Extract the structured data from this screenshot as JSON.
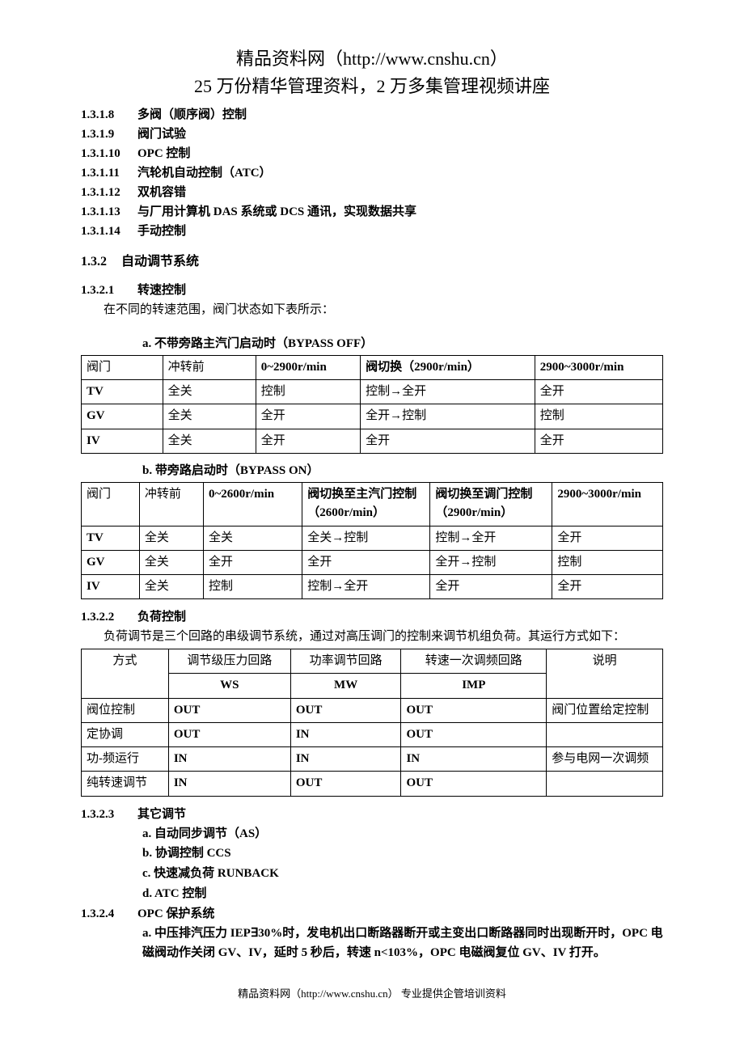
{
  "header": {
    "line1": "精品资料网（http://www.cnshu.cn）",
    "line2": "25 万份精华管理资料，2 万多集管理视频讲座"
  },
  "toc": [
    {
      "num": "1.3.1.8",
      "txt": "多阀（顺序阀）控制"
    },
    {
      "num": "1.3.1.9",
      "txt": "阀门试验"
    },
    {
      "num": "1.3.1.10",
      "txt": "OPC 控制"
    },
    {
      "num": "1.3.1.11",
      "txt": "汽轮机自动控制（ATC）"
    },
    {
      "num": "1.3.1.12",
      "txt": "双机容错"
    },
    {
      "num": "1.3.1.13",
      "txt": "与厂用计算机 DAS 系统或 DCS 通讯，实现数据共享"
    },
    {
      "num": "1.3.1.14",
      "txt": "手动控制"
    }
  ],
  "section_132": {
    "num": "1.3.2",
    "title": "自动调节系统"
  },
  "s1321": {
    "num": "1.3.2.1",
    "title": "转速控制",
    "body": "在不同的转速范围，阀门状态如下表所示："
  },
  "tableA": {
    "title": "a.   不带旁路主汽门启动时（BYPASS OFF）",
    "widths": [
      "14%",
      "16%",
      "18%",
      "30%",
      "22%"
    ],
    "head": [
      "阀门",
      "冲转前",
      "0~2900r/min",
      "阀切换（2900r/min）",
      "2900~3000r/min"
    ],
    "rows": [
      [
        "TV",
        "全关",
        "控制",
        "控制→全开",
        "全开"
      ],
      [
        "GV",
        "全关",
        "全开",
        "全开→控制",
        "控制"
      ],
      [
        "IV",
        "全关",
        "全开",
        "全开",
        "全开"
      ]
    ],
    "bold_col0": true
  },
  "tableB": {
    "title": "b.   带旁路启动时（BYPASS ON）",
    "widths": [
      "10%",
      "11%",
      "17%",
      "22%",
      "21%",
      "19%"
    ],
    "head": [
      "阀门",
      "冲转前",
      "0~2600r/min",
      "阀切换至主汽门控制（2600r/min）",
      "阀切换至调门控制（2900r/min）",
      "2900~3000r/min"
    ],
    "rows": [
      [
        "TV",
        "全关",
        "全关",
        "全关→控制",
        "控制→全开",
        "全开"
      ],
      [
        "GV",
        "全关",
        "全开",
        "全开",
        "全开→控制",
        "控制"
      ],
      [
        "IV",
        "全关",
        "控制",
        "控制→全开",
        "全开",
        "全开"
      ]
    ],
    "bold_col0": true
  },
  "s1322": {
    "num": "1.3.2.2",
    "title": "负荷控制",
    "body": "负荷调节是三个回路的串级调节系统，通过对高压调门的控制来调节机组负荷。其运行方式如下："
  },
  "tableC": {
    "widths": [
      "15%",
      "21%",
      "19%",
      "25%",
      "20%"
    ],
    "head_top": [
      "方式",
      "调节级压力回路",
      "功率调节回路",
      "转速一次调频回路",
      "说明"
    ],
    "head_sub": [
      "",
      "WS",
      "MW",
      "IMP",
      ""
    ],
    "rows": [
      [
        "阀位控制",
        "OUT",
        "OUT",
        "OUT",
        "阀门位置给定控制"
      ],
      [
        "定协调",
        "OUT",
        "IN",
        "OUT",
        ""
      ],
      [
        "功-频运行",
        "IN",
        "IN",
        "IN",
        "参与电网一次调频"
      ],
      [
        "纯转速调节",
        "IN",
        "OUT",
        "OUT",
        ""
      ]
    ]
  },
  "s1323": {
    "num": "1.3.2.3",
    "title": "其它调节",
    "items": [
      "a.   自动同步调节（AS）",
      "b.   协调控制 CCS",
      "c.   快速减负荷 RUNBACK",
      "d.   ATC 控制"
    ]
  },
  "s1324": {
    "num": "1.3.2.4",
    "title": "OPC 保护系统",
    "item_a": "a.   中压排汽压力 IEP∃30%时，发电机出口断路器断开或主变出口断路器同时出现断开时，OPC 电磁阀动作关闭 GV、IV，延时 5 秒后，转速 n<103%，OPC 电磁阀复位 GV、IV 打开。"
  },
  "footer": "精品资料网（http://www.cnshu.cn）  专业提供企管培训资料"
}
